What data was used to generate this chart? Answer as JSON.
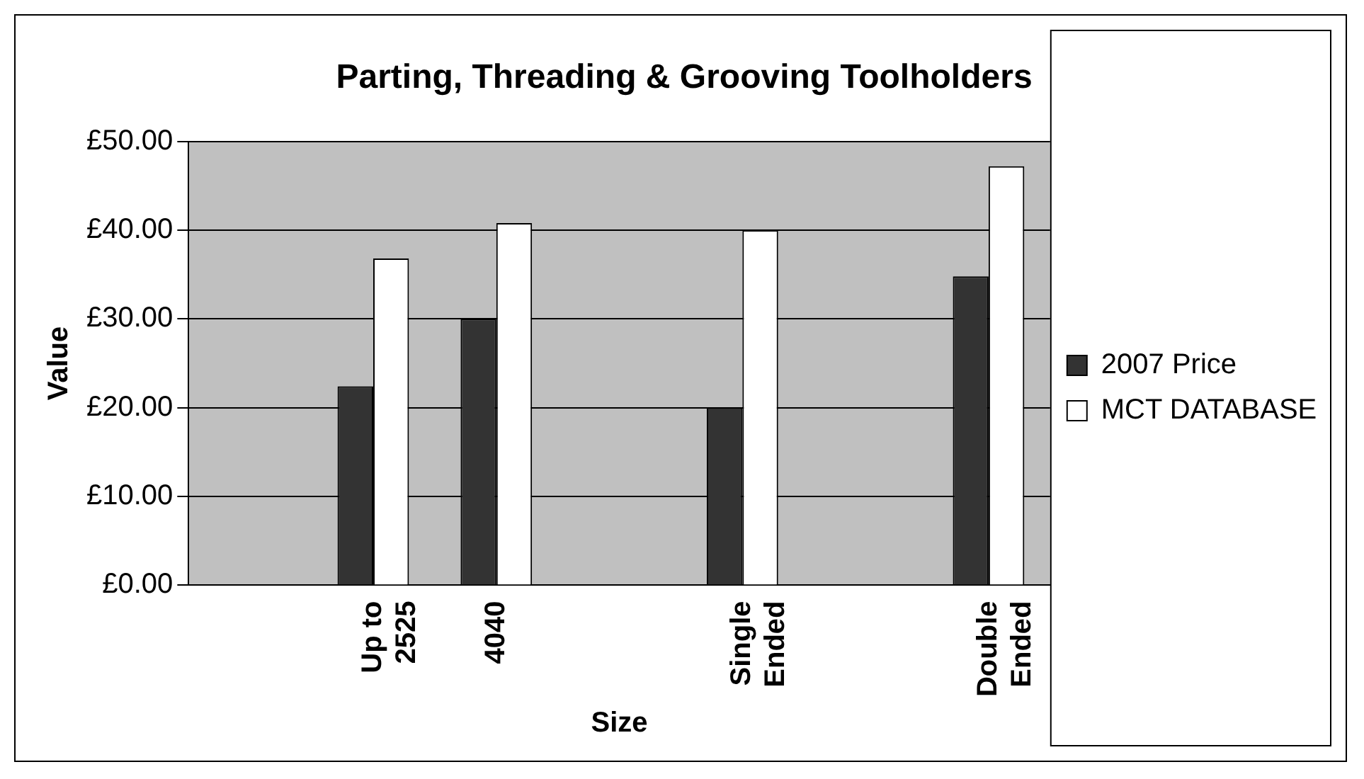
{
  "chart_data": {
    "type": "bar",
    "title": "Parting, Threading & Grooving Toolholders",
    "xlabel": "Size",
    "ylabel": "Value",
    "categories": [
      null,
      "Up to 2525",
      "4040",
      null,
      "Single Ended",
      null,
      "Double Ended"
    ],
    "series": [
      {
        "name": "2007 Price",
        "color": "#333333",
        "values": [
          null,
          22.4,
          30,
          null,
          20,
          null,
          34.8
        ]
      },
      {
        "name": "MCT DATABASE",
        "color": "#ffffff",
        "values": [
          null,
          36.8,
          40.8,
          null,
          40,
          null,
          47.2
        ]
      }
    ],
    "ylim": [
      0,
      50
    ],
    "yticks": [
      {
        "value": 0,
        "label": "£0.00"
      },
      {
        "value": 10,
        "label": "£10.00"
      },
      {
        "value": 20,
        "label": "£20.00"
      },
      {
        "value": 30,
        "label": "£30.00"
      },
      {
        "value": 40,
        "label": "£40.00"
      },
      {
        "value": 50,
        "label": "£50.00"
      }
    ],
    "grid": "y",
    "legend": "right"
  }
}
